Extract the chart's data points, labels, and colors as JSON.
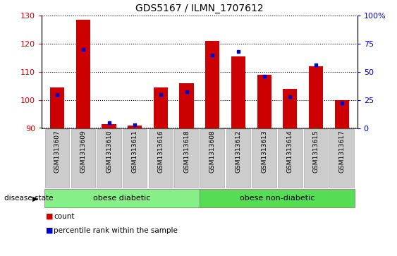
{
  "title": "GDS5167 / ILMN_1707612",
  "samples": [
    "GSM1313607",
    "GSM1313609",
    "GSM1313610",
    "GSM1313611",
    "GSM1313616",
    "GSM1313618",
    "GSM1313608",
    "GSM1313612",
    "GSM1313613",
    "GSM1313614",
    "GSM1313615",
    "GSM1313617"
  ],
  "count_values": [
    104.5,
    128.5,
    91.5,
    91.0,
    104.5,
    106.0,
    121.0,
    115.5,
    109.0,
    104.0,
    112.0,
    100.0
  ],
  "percentile_values": [
    30,
    70,
    5,
    3,
    30,
    32,
    65,
    68,
    46,
    28,
    56,
    22
  ],
  "ymin": 90,
  "ymax": 130,
  "y_ticks": [
    90,
    100,
    110,
    120,
    130
  ],
  "y2min": 0,
  "y2max": 100,
  "y2_ticks": [
    0,
    25,
    50,
    75,
    100
  ],
  "bar_color": "#cc0000",
  "dot_color": "#0000cc",
  "group1_label": "obese diabetic",
  "group2_label": "obese non-diabetic",
  "group1_count": 6,
  "group2_count": 6,
  "group_bg_color1": "#88ee88",
  "group_bg_color2": "#55dd55",
  "tick_bg": "#cccccc",
  "tick_edge": "#aaaaaa",
  "disease_state_label": "disease state",
  "legend_count": "count",
  "legend_pct": "percentile rank within the sample",
  "bar_width": 0.55
}
